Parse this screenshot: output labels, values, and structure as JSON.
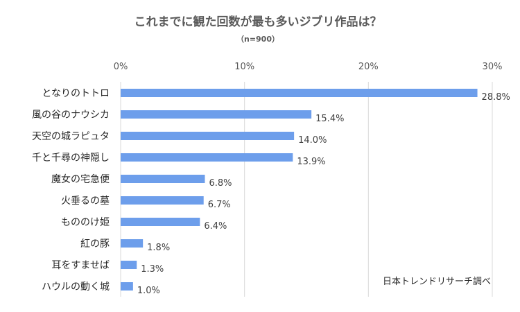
{
  "chart_data": {
    "type": "bar",
    "orientation": "horizontal",
    "title": "これまでに観た回数が最も多いジブリ作品は？",
    "subtitle": "（n=900）",
    "categories": [
      "となりのトトロ",
      "風の谷のナウシカ",
      "天空の城ラピュタ",
      "千と千尋の神隠し",
      "魔女の宅急便",
      "火垂るの墓",
      "もののけ姫",
      "紅の豚",
      "耳をすませば",
      "ハウルの動く城"
    ],
    "values": [
      28.8,
      15.4,
      14.0,
      13.9,
      6.8,
      6.7,
      6.4,
      1.8,
      1.3,
      1.0
    ],
    "data_labels": [
      "28.8%",
      "15.4%",
      "14.0%",
      "13.9%",
      "6.8%",
      "6.7%",
      "6.4%",
      "1.8%",
      "1.3%",
      "1.0%"
    ],
    "x_ticks": [
      0,
      10,
      20,
      30
    ],
    "x_tick_labels": [
      "0%",
      "10%",
      "20%",
      "30%"
    ],
    "xlim": [
      0,
      30
    ],
    "axis_position": "top",
    "grid": true,
    "bar_color": "#6d9eeb",
    "source": "日本トレンドリサーチ調べ"
  }
}
